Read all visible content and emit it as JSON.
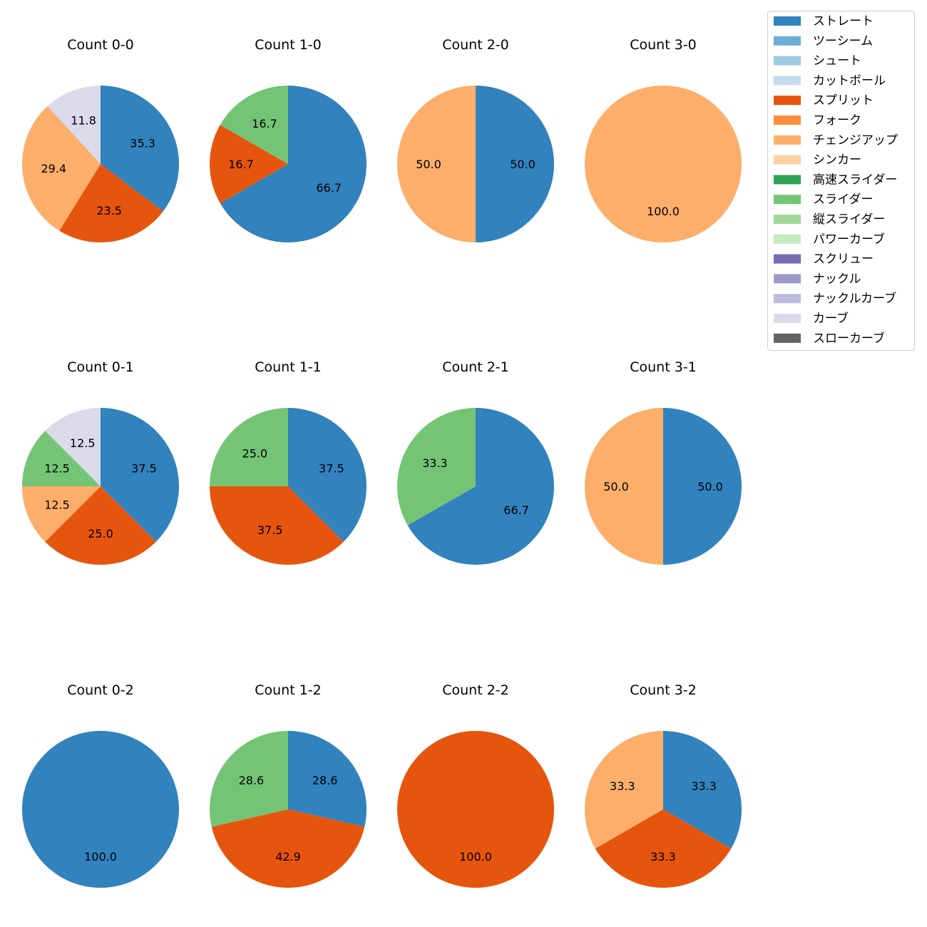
{
  "legend": [
    {
      "name": "ストレート",
      "color": "#3182bd"
    },
    {
      "name": "ツーシーム",
      "color": "#6baed6"
    },
    {
      "name": "シュート",
      "color": "#9ecae1"
    },
    {
      "name": "カットボール",
      "color": "#c6dbef"
    },
    {
      "name": "スプリット",
      "color": "#e6550d"
    },
    {
      "name": "フォーク",
      "color": "#fd8d3c"
    },
    {
      "name": "チェンジアップ",
      "color": "#fdae6b"
    },
    {
      "name": "シンカー",
      "color": "#fdd0a2"
    },
    {
      "name": "高速スライダー",
      "color": "#31a354"
    },
    {
      "name": "スライダー",
      "color": "#74c476"
    },
    {
      "name": "縦スライダー",
      "color": "#a1d99b"
    },
    {
      "name": "パワーカーブ",
      "color": "#c7e9c0"
    },
    {
      "name": "スクリュー",
      "color": "#756bb1"
    },
    {
      "name": "ナックル",
      "color": "#9e9ac8"
    },
    {
      "name": "ナックルカーブ",
      "color": "#bcbddc"
    },
    {
      "name": "カーブ",
      "color": "#dadaeb"
    },
    {
      "name": "スローカーブ",
      "color": "#636363"
    }
  ],
  "chart_data": [
    {
      "type": "pie",
      "title": "Count 0-0",
      "labels": [
        "ストレート",
        "スプリット",
        "チェンジアップ",
        "カーブ"
      ],
      "values": [
        35.3,
        23.5,
        29.4,
        11.8
      ]
    },
    {
      "type": "pie",
      "title": "Count 1-0",
      "labels": [
        "ストレート",
        "スプリット",
        "スライダー"
      ],
      "values": [
        66.7,
        16.7,
        16.7
      ]
    },
    {
      "type": "pie",
      "title": "Count 2-0",
      "labels": [
        "ストレート",
        "チェンジアップ"
      ],
      "values": [
        50.0,
        50.0
      ]
    },
    {
      "type": "pie",
      "title": "Count 3-0",
      "labels": [
        "チェンジアップ"
      ],
      "values": [
        100.0
      ]
    },
    {
      "type": "pie",
      "title": "Count 0-1",
      "labels": [
        "ストレート",
        "スプリット",
        "チェンジアップ",
        "スライダー",
        "カーブ"
      ],
      "values": [
        37.5,
        25.0,
        12.5,
        12.5,
        12.5
      ]
    },
    {
      "type": "pie",
      "title": "Count 1-1",
      "labels": [
        "ストレート",
        "スプリット",
        "スライダー"
      ],
      "values": [
        37.5,
        37.5,
        25.0
      ]
    },
    {
      "type": "pie",
      "title": "Count 2-1",
      "labels": [
        "ストレート",
        "スライダー"
      ],
      "values": [
        66.7,
        33.3
      ]
    },
    {
      "type": "pie",
      "title": "Count 3-1",
      "labels": [
        "ストレート",
        "チェンジアップ"
      ],
      "values": [
        50.0,
        50.0
      ]
    },
    {
      "type": "pie",
      "title": "Count 0-2",
      "labels": [
        "ストレート"
      ],
      "values": [
        100.0
      ]
    },
    {
      "type": "pie",
      "title": "Count 1-2",
      "labels": [
        "ストレート",
        "スプリット",
        "スライダー"
      ],
      "values": [
        28.6,
        42.9,
        28.6
      ]
    },
    {
      "type": "pie",
      "title": "Count 2-2",
      "labels": [
        "スプリット"
      ],
      "values": [
        100.0
      ]
    },
    {
      "type": "pie",
      "title": "Count 3-2",
      "labels": [
        "ストレート",
        "スプリット",
        "チェンジアップ"
      ],
      "values": [
        33.3,
        33.3,
        33.3
      ]
    }
  ]
}
